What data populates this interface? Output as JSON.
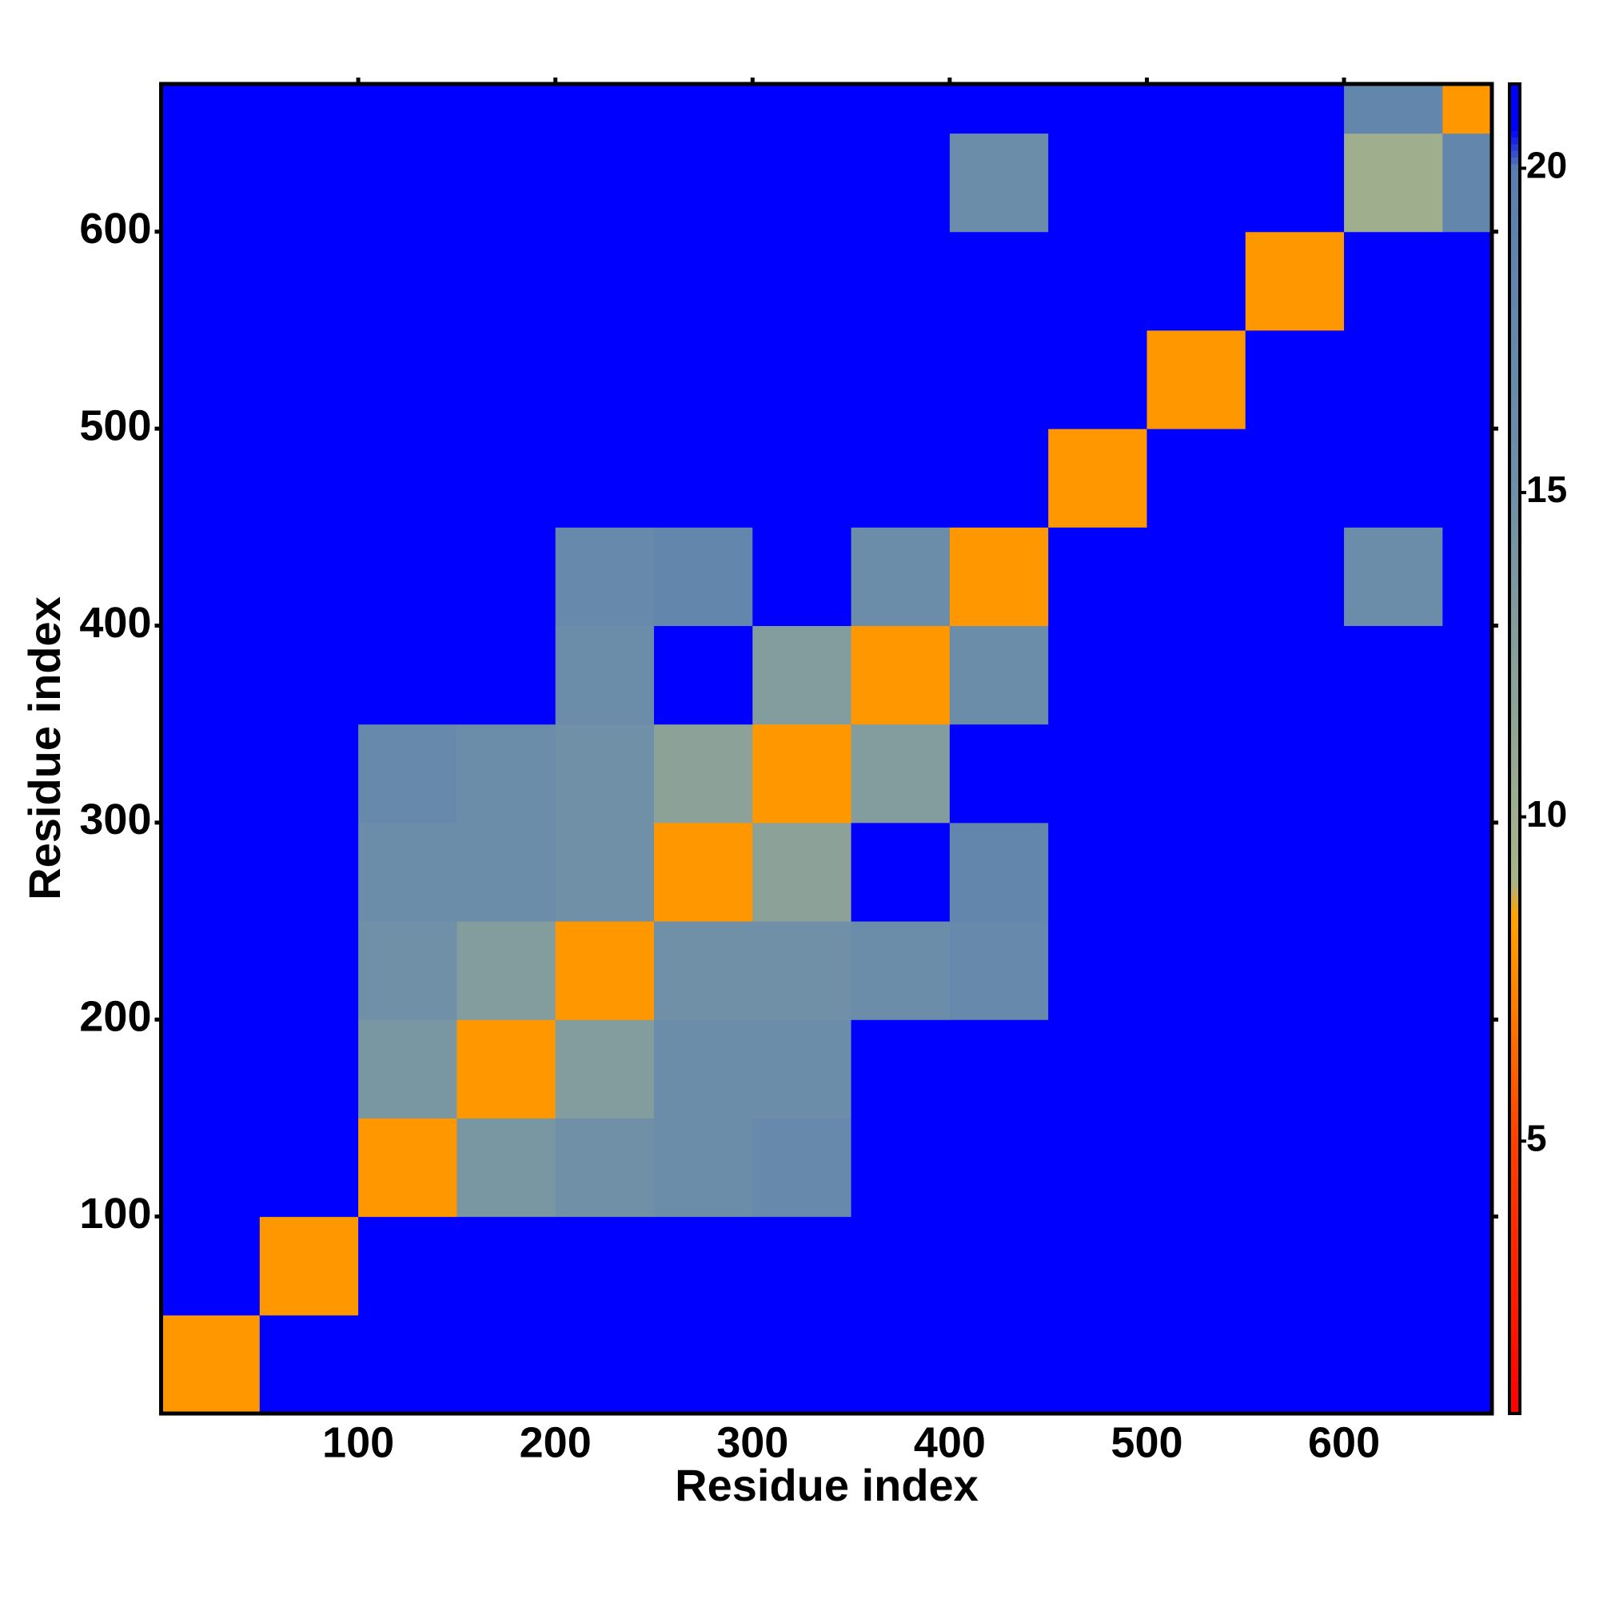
{
  "chart_data": {
    "type": "heatmap",
    "x_label": "Residue index",
    "y_label": "Residue index",
    "bins": [
      0,
      50,
      100,
      150,
      200,
      250,
      300,
      350,
      400,
      450,
      500,
      550,
      600,
      650,
      675
    ],
    "z": [
      [
        8,
        21,
        21,
        21,
        21,
        21,
        21,
        21,
        21,
        21,
        21,
        21,
        21,
        21
      ],
      [
        21,
        8,
        21,
        21,
        21,
        21,
        21,
        21,
        21,
        21,
        21,
        21,
        21,
        21
      ],
      [
        21,
        21,
        8,
        14,
        15,
        16,
        17,
        21,
        21,
        21,
        21,
        21,
        21,
        21
      ],
      [
        21,
        21,
        14,
        8,
        13,
        16,
        16,
        21,
        21,
        21,
        21,
        21,
        21,
        21
      ],
      [
        21,
        21,
        15,
        13,
        8,
        15,
        15,
        16,
        17,
        21,
        21,
        21,
        21,
        21
      ],
      [
        21,
        21,
        16,
        16,
        15,
        8,
        12,
        21,
        18,
        21,
        21,
        21,
        21,
        21
      ],
      [
        21,
        21,
        17,
        16,
        15,
        12,
        8,
        13,
        21,
        21,
        21,
        21,
        21,
        21
      ],
      [
        21,
        21,
        21,
        21,
        16,
        21,
        13,
        8,
        16,
        21,
        21,
        21,
        21,
        21
      ],
      [
        21,
        21,
        21,
        21,
        17,
        18,
        21,
        16,
        8,
        21,
        21,
        21,
        16,
        21
      ],
      [
        21,
        21,
        21,
        21,
        21,
        21,
        21,
        21,
        21,
        8,
        21,
        21,
        21,
        21
      ],
      [
        21,
        21,
        21,
        21,
        21,
        21,
        21,
        21,
        21,
        21,
        8,
        21,
        21,
        21
      ],
      [
        21,
        21,
        21,
        21,
        21,
        21,
        21,
        21,
        21,
        21,
        21,
        8,
        21,
        21
      ],
      [
        21,
        21,
        21,
        21,
        21,
        21,
        21,
        21,
        16,
        21,
        21,
        21,
        10,
        18
      ],
      [
        21,
        21,
        21,
        21,
        21,
        21,
        21,
        21,
        21,
        21,
        21,
        21,
        18,
        8
      ]
    ],
    "xlim": [
      0,
      675
    ],
    "ylim": [
      0,
      675
    ],
    "xticks": [
      100,
      200,
      300,
      400,
      500,
      600
    ],
    "yticks": [
      100,
      200,
      300,
      400,
      500,
      600
    ],
    "clim": [
      0.8,
      21.3
    ],
    "cticks": [
      5,
      10,
      15,
      20
    ],
    "colorscale": [
      [
        0.8,
        "#ff0000"
      ],
      [
        5,
        "#ff4000"
      ],
      [
        8.5,
        "#ffa500"
      ],
      [
        9,
        "#a8b488"
      ],
      [
        15,
        "#7090a8"
      ],
      [
        20,
        "#5a7fb0"
      ],
      [
        20.6,
        "#0000ff"
      ]
    ]
  }
}
